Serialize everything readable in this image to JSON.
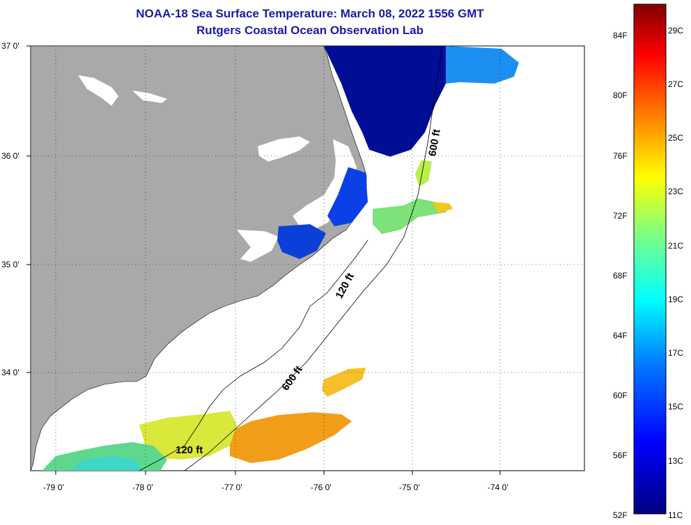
{
  "title": {
    "line1": "NOAA-18 Sea Surface Temperature:  March 08, 2022 1556 GMT",
    "line2": "Rutgers Coastal Ocean Observation Lab"
  },
  "colors": {
    "title": "#1a1aa8",
    "land": "#a9a9a9",
    "no_data": "#ffffff",
    "grid": "#000000"
  },
  "map": {
    "latitude_labels": [
      "37 0'",
      "36 0'",
      "35 0'",
      "34 0'"
    ],
    "longitude_labels": [
      "-79 0'",
      "-78 0'",
      "-77 0'",
      "-76 0'",
      "-75 0'",
      "-74 0'"
    ],
    "isobath_labels": [
      "600 ft",
      "120 ft",
      "600 ft",
      "120 ft"
    ]
  },
  "colorbar": {
    "fahrenheit_labels": [
      "84F",
      "80F",
      "76F",
      "72F",
      "68F",
      "64F",
      "60F",
      "56F",
      "52F"
    ],
    "celsius_labels": [
      "29C",
      "27C",
      "25C",
      "23C",
      "21C",
      "19C",
      "17C",
      "15C",
      "13C",
      "11C"
    ],
    "gradient_colors_bottom_to_top": [
      "#000080",
      "#0000ff",
      "#0080ff",
      "#00ffff",
      "#80ff80",
      "#ffff00",
      "#ff8000",
      "#ff0000",
      "#800000"
    ]
  }
}
